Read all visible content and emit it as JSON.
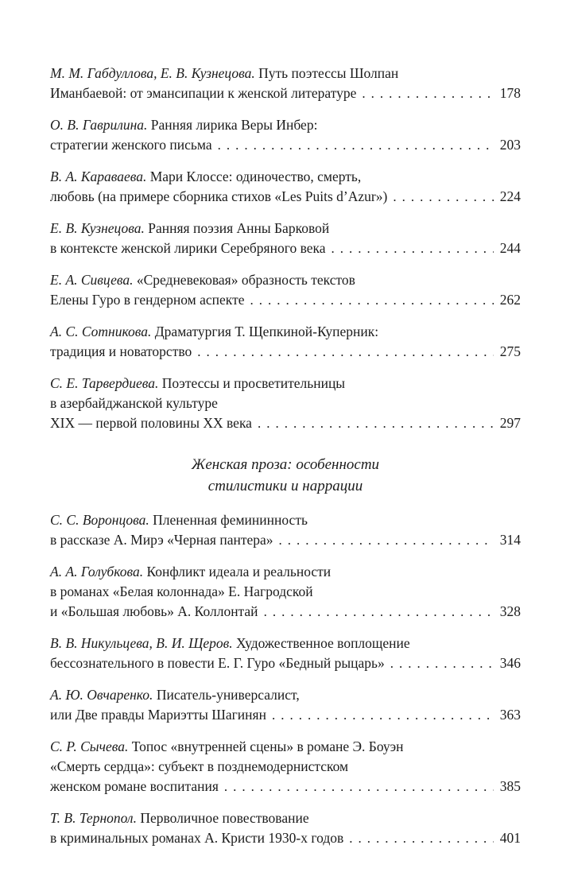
{
  "page": {
    "background": "#ffffff",
    "text_color": "#1c1c1c"
  },
  "toc": {
    "sections": [
      {
        "heading_lines": [],
        "entries": [
          {
            "authors": "М. М. Габдуллова, Е. В. Кузнецова.",
            "first_line": "Путь поэтессы Шолпан",
            "middle_lines": [],
            "last_line": "Иманбаевой: от эмансипации к женской литературе",
            "page": "178"
          },
          {
            "authors": "О. В. Гаврилина.",
            "first_line": "Ранняя лирика Веры Инбер:",
            "middle_lines": [],
            "last_line": "стратегии женского письма",
            "page": "203"
          },
          {
            "authors": "В. А. Караваева.",
            "first_line": "Мари Клоссе: одиночество, смерть,",
            "middle_lines": [],
            "last_line": "любовь (на примере сборника стихов «Les Puits d’Azur»)",
            "page": "224"
          },
          {
            "authors": "Е. В. Кузнецова.",
            "first_line": "Ранняя поэзия Анны Барковой",
            "middle_lines": [],
            "last_line": "в контексте женской лирики Серебряного века",
            "page": "244"
          },
          {
            "authors": "Е. А. Сивцева.",
            "first_line": "«Средневековая» образность текстов",
            "middle_lines": [],
            "last_line": "Елены Гуро в гендерном аспекте",
            "page": "262"
          },
          {
            "authors": "А. С. Сотникова.",
            "first_line": "Драматургия Т. Щепкиной-Куперник:",
            "middle_lines": [],
            "last_line": "традиция и новаторство",
            "page": "275"
          },
          {
            "authors": "С. Е. Тарвердиева.",
            "first_line": "Поэтессы и просветительницы",
            "middle_lines": [
              "в азербайджанской культуре"
            ],
            "last_line": "XIX — первой половины XX века",
            "page": "297"
          }
        ]
      },
      {
        "heading_lines": [
          "Женская проза: особенности",
          "стилистики и наррации"
        ],
        "entries": [
          {
            "authors": "С. С. Воронцова.",
            "first_line": "Плененная фемининность",
            "middle_lines": [],
            "last_line": "в рассказе А. Мирэ «Черная пантера»",
            "page": "314"
          },
          {
            "authors": "А. А. Голубкова.",
            "first_line": "Конфликт идеала и реальности",
            "middle_lines": [
              "в романах «Белая колоннада» Е. Нагродской"
            ],
            "last_line": "и «Большая любовь» А. Коллонтай",
            "page": "328"
          },
          {
            "authors": "В. В. Никульцева, В. И. Щеров.",
            "first_line": "Художественное воплощение",
            "middle_lines": [],
            "last_line": "бессознательного в повести Е. Г. Гуро «Бедный рыцарь»",
            "page": "346"
          },
          {
            "authors": "А. Ю. Овчаренко.",
            "first_line": "Писатель-универсалист,",
            "middle_lines": [],
            "last_line": "или Две правды Мариэтты Шагинян",
            "page": "363"
          },
          {
            "authors": "С. Р. Сычева.",
            "first_line": "Топос «внутренней сцены» в романе Э. Боуэн",
            "middle_lines": [
              "«Смерть сердца»: субъект в позднемодернистском"
            ],
            "last_line": "женском романе воспитания",
            "page": "385"
          },
          {
            "authors": "Т. В. Тернопол.",
            "first_line": "Перволичное повествование",
            "middle_lines": [],
            "last_line": "в криминальных романах А. Кристи 1930-х годов",
            "page": "401"
          }
        ]
      }
    ]
  }
}
